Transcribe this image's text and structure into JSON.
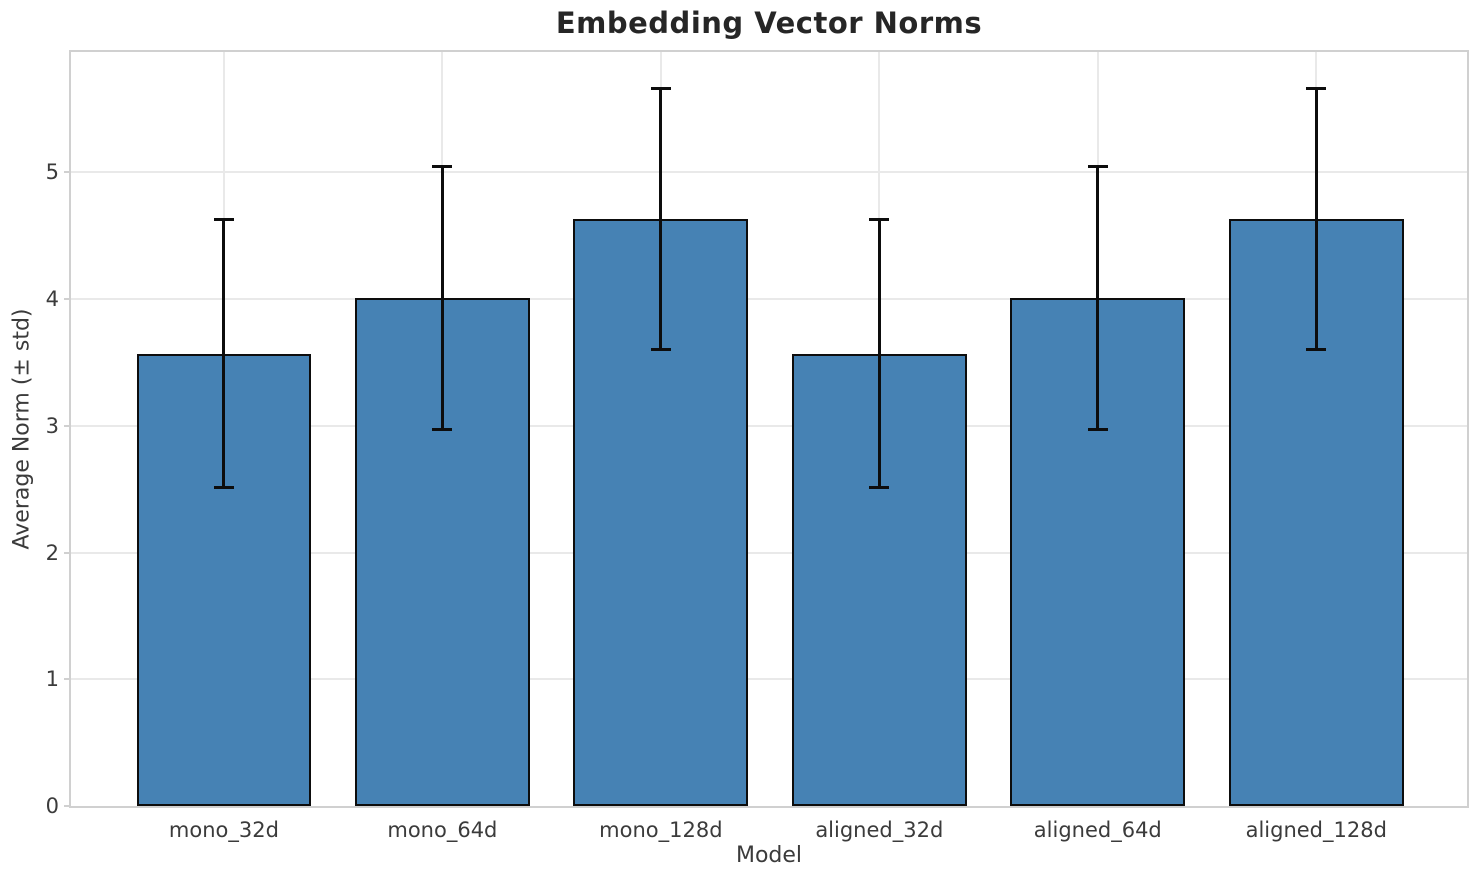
{
  "chart_data": {
    "type": "bar",
    "title": "Embedding Vector Norms",
    "xlabel": "Model",
    "ylabel": "Average Norm (± std)",
    "categories": [
      "mono_32d",
      "mono_64d",
      "mono_128d",
      "aligned_32d",
      "aligned_64d",
      "aligned_128d"
    ],
    "values": [
      3.57,
      4.01,
      4.63,
      3.57,
      4.01,
      4.63
    ],
    "errors": [
      1.06,
      1.04,
      1.03,
      1.06,
      1.04,
      1.03
    ],
    "yticks": [
      0,
      1,
      2,
      3,
      4,
      5
    ],
    "ylim": [
      0,
      5.95
    ],
    "xlim": [
      -0.7,
      5.69
    ],
    "bar_width_units": 0.8,
    "grid": true,
    "legend": "none",
    "colors": {
      "bar_fill": "#4682b4",
      "bar_edge": "#0d0d0d",
      "error_bar": "#0d0d0d",
      "gridline": "#e9e9e9",
      "spine": "#d0d0d0",
      "tick_text": "#3b3b3b",
      "title_text": "#262626"
    }
  }
}
